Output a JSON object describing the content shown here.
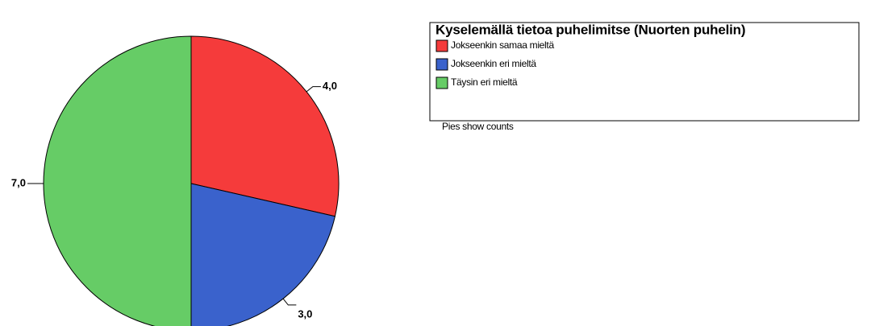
{
  "chart_data": {
    "type": "pie",
    "title": "Kyselemällä tietoa puhelimitse (Nuorten puhelin)",
    "categories": [
      "Jokseenkin samaa mieltä",
      "Jokseenkin eri mieltä",
      "Täysin eri mieltä"
    ],
    "values": [
      4,
      3,
      7
    ],
    "value_labels": [
      "4,0",
      "3,0",
      "7,0"
    ],
    "colors": [
      "#f53b3b",
      "#3a62cc",
      "#66cc66"
    ],
    "annotation": "Pies show counts"
  }
}
